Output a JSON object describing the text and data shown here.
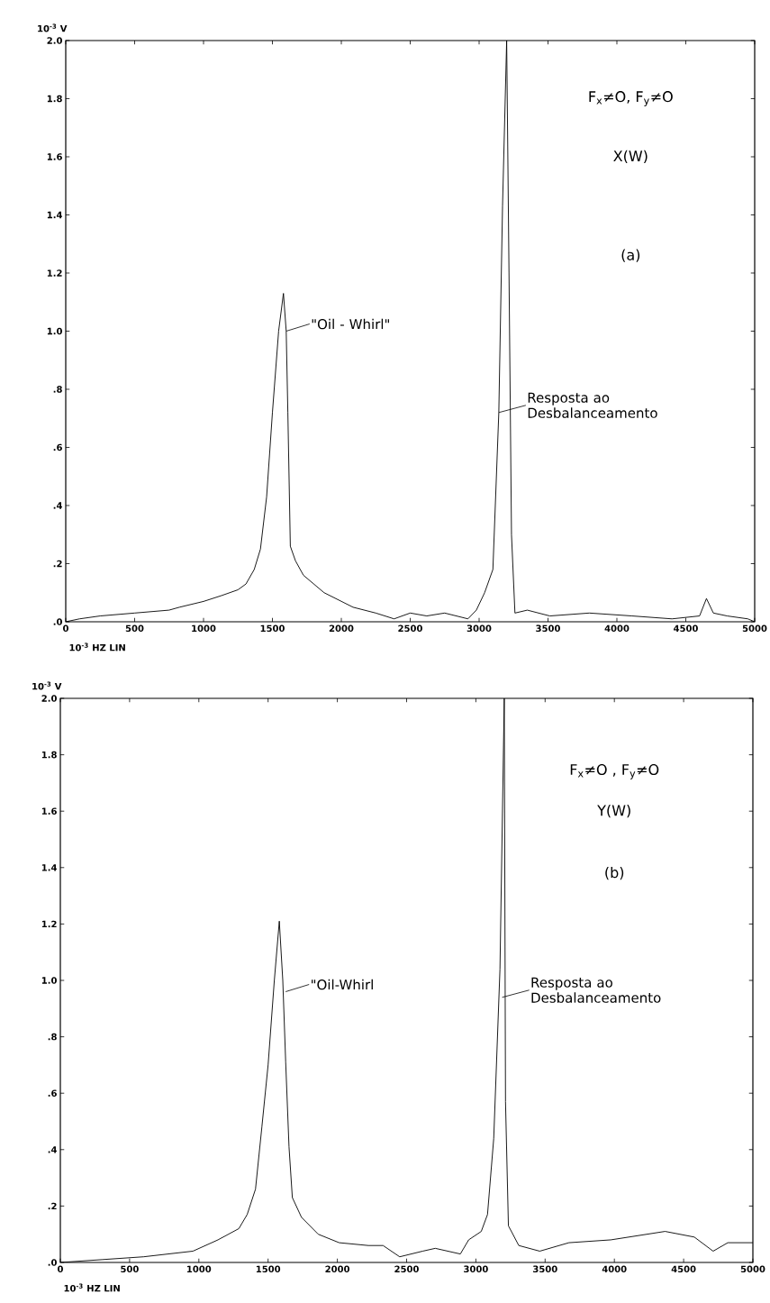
{
  "chart_data": [
    {
      "type": "line",
      "xlabel": "10$^{-3}$ HZ LIN",
      "ylabel": "10$^{-3}$ V",
      "color": "#000000",
      "x": [
        0,
        100,
        250,
        500,
        750,
        825,
        1000,
        1130,
        1250,
        1308,
        1368,
        1413,
        1458,
        1500,
        1545,
        1580,
        1600,
        1612,
        1630,
        1667,
        1725,
        1875,
        2085,
        2250,
        2383,
        2500,
        2620,
        2750,
        2919,
        2980,
        3040,
        3100,
        3143,
        3170,
        3200,
        3217,
        3235,
        3260,
        3350,
        3513,
        3800,
        4110,
        4400,
        4600,
        4650,
        4700,
        4800,
        4950,
        5000
      ],
      "values": [
        0.0,
        0.01,
        0.02,
        0.03,
        0.04,
        0.05,
        0.07,
        0.09,
        0.11,
        0.13,
        0.18,
        0.25,
        0.43,
        0.72,
        1.0,
        1.13,
        1.0,
        0.72,
        0.26,
        0.21,
        0.16,
        0.1,
        0.05,
        0.03,
        0.01,
        0.03,
        0.02,
        0.03,
        0.01,
        0.04,
        0.1,
        0.18,
        0.72,
        1.43,
        2.0,
        1.2,
        0.3,
        0.03,
        0.04,
        0.02,
        0.03,
        0.02,
        0.01,
        0.02,
        0.08,
        0.03,
        0.02,
        0.01,
        0.0
      ],
      "xlim": [
        0,
        5000
      ],
      "ylim": [
        0,
        2
      ],
      "xticks": [
        0,
        500,
        1000,
        1500,
        2000,
        2500,
        3000,
        3500,
        4000,
        4500,
        5000
      ],
      "yticks": [
        {
          "value": 0,
          "label": ".0"
        },
        {
          "value": 0.2,
          "label": ".2"
        },
        {
          "value": 0.4,
          "label": ".4"
        },
        {
          "value": 0.6,
          "label": ".6"
        },
        {
          "value": 0.8,
          "label": ".8"
        },
        {
          "value": 1.0,
          "label": "1.0"
        },
        {
          "value": 1.2,
          "label": "1.2"
        },
        {
          "value": 1.4,
          "label": "1.4"
        },
        {
          "value": 1.6,
          "label": "1.6"
        },
        {
          "value": 1.8,
          "label": "1.8"
        },
        {
          "value": 2.0,
          "label": "2.0"
        }
      ],
      "annotations": [
        "F$_{x}$≠O, F$_{y}$≠O",
        "X(W)",
        "(a)",
        {
          "text": "\"Oil - Whirl\"",
          "x": 1600,
          "y": 1.0
        },
        {
          "text": "Resposta ao Desbalanceamento",
          "x": 3143,
          "y": 0.72
        }
      ]
    },
    {
      "type": "line",
      "xlabel": "10$^{-3}$ HZ LIN",
      "ylabel": "10$^{-3}$ V",
      "color": "#000000",
      "x": [
        0,
        300,
        600,
        957,
        1138,
        1289,
        1349,
        1409,
        1455,
        1500,
        1545,
        1581,
        1606,
        1627,
        1651,
        1675,
        1741,
        1862,
        2013,
        2224,
        2330,
        2450,
        2616,
        2707,
        2888,
        2948,
        3039,
        3084,
        3129,
        3174,
        3205,
        3214,
        3235,
        3310,
        3461,
        3672,
        3974,
        4366,
        4577,
        4713,
        4819,
        5000
      ],
      "values": [
        0.0,
        0.01,
        0.02,
        0.04,
        0.08,
        0.12,
        0.17,
        0.26,
        0.48,
        0.7,
        1.0,
        1.21,
        1.0,
        0.71,
        0.41,
        0.23,
        0.16,
        0.1,
        0.07,
        0.06,
        0.06,
        0.02,
        0.04,
        0.05,
        0.03,
        0.08,
        0.11,
        0.17,
        0.44,
        1.04,
        2.0,
        0.57,
        0.13,
        0.06,
        0.04,
        0.07,
        0.08,
        0.11,
        0.09,
        0.04,
        0.07,
        0.07
      ],
      "xlim": [
        0,
        5000
      ],
      "ylim": [
        0,
        2
      ],
      "xticks": [
        0,
        500,
        1000,
        1500,
        2000,
        2500,
        3000,
        3500,
        4000,
        4500,
        5000
      ],
      "yticks": [
        {
          "value": 0,
          "label": ".0"
        },
        {
          "value": 0.2,
          "label": ".2"
        },
        {
          "value": 0.4,
          "label": ".4"
        },
        {
          "value": 0.6,
          "label": ".6"
        },
        {
          "value": 0.8,
          "label": ".8"
        },
        {
          "value": 1.0,
          "label": "1.0"
        },
        {
          "value": 1.2,
          "label": "1.2"
        },
        {
          "value": 1.4,
          "label": "1.4"
        },
        {
          "value": 1.6,
          "label": "1.6"
        },
        {
          "value": 1.8,
          "label": "1.8"
        },
        {
          "value": 2.0,
          "label": "2.0"
        }
      ],
      "annotations": [
        "F$_{x}$≠O , F$_{y}$≠O",
        "Y(W)",
        "(b)",
        {
          "text": "\"Oil-Whirl",
          "x": 1627,
          "y": 0.96
        },
        {
          "text": "Resposta ao Desbalanceamento",
          "x": 3190,
          "y": 0.94
        }
      ]
    }
  ]
}
